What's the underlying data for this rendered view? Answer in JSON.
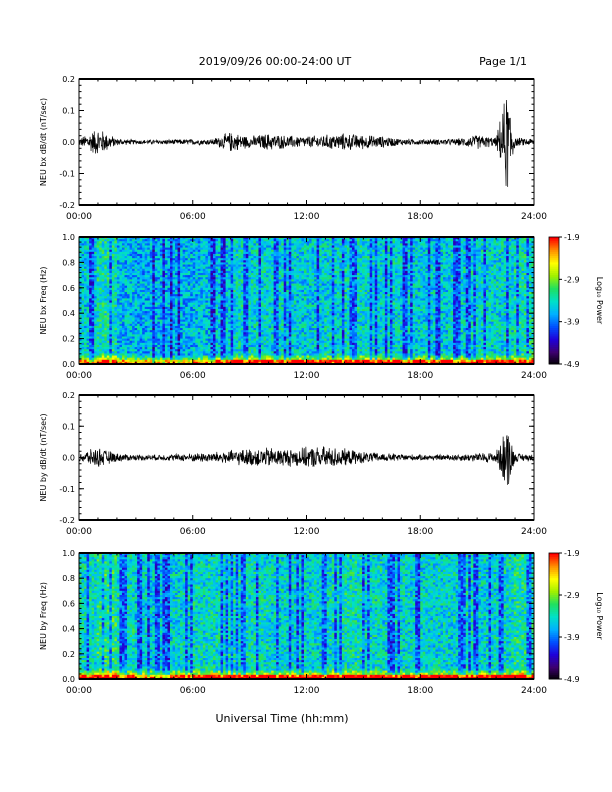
{
  "header": {
    "title": "2019/09/26  00:00-24:00 UT",
    "page": "Page 1/1"
  },
  "footer": {
    "xlabel": "Universal Time (hh:mm)"
  },
  "colorbar": {
    "label": "Log₁₀ Power",
    "ticks": [
      "-1.9",
      "-2.9",
      "-3.9",
      "-4.9"
    ],
    "range": [
      -4.9,
      -1.9
    ],
    "colormap": [
      "#000000",
      "#3d0070",
      "#1f00d9",
      "#0050ff",
      "#00b0ff",
      "#00e0c8",
      "#20e060",
      "#a0f000",
      "#ffff00",
      "#ff9000",
      "#ff0000"
    ]
  },
  "colors": {
    "axis": "#000000",
    "trace": "#000000"
  },
  "chart_data": [
    {
      "type": "line",
      "ylabel": "NEU bx dB/dt (nT/sec)",
      "ylim": [
        -0.2,
        0.2
      ],
      "yticks": [
        "0.2",
        "0.1",
        "0.0",
        "-0.1",
        "-0.2"
      ],
      "xlim": [
        0,
        24
      ],
      "xticks": [
        "00:00",
        "06:00",
        "12:00",
        "18:00",
        "24:00"
      ],
      "x": [
        0,
        1,
        2,
        3,
        4,
        5,
        6,
        7,
        8,
        9,
        10,
        11,
        12,
        13,
        14,
        15,
        16,
        17,
        18,
        19,
        20,
        21,
        22,
        22.6,
        23,
        24
      ],
      "amplitude": [
        0.012,
        0.05,
        0.012,
        0.008,
        0.008,
        0.009,
        0.01,
        0.01,
        0.035,
        0.02,
        0.03,
        0.022,
        0.02,
        0.025,
        0.03,
        0.025,
        0.02,
        0.012,
        0.01,
        0.01,
        0.012,
        0.025,
        0.015,
        0.19,
        0.015,
        0.012
      ]
    },
    {
      "type": "heatmap",
      "ylabel": "NEU bx Freq (Hz)",
      "ylim": [
        0.0,
        1.0
      ],
      "yticks": [
        "1.0",
        "0.8",
        "0.6",
        "0.4",
        "0.2",
        "0.0"
      ],
      "xlim": [
        0,
        24
      ],
      "xticks": [
        "00:00",
        "06:00",
        "12:00",
        "18:00",
        "24:00"
      ],
      "zlim": [
        -4.9,
        -1.9
      ],
      "activity_by_hour": [
        0.45,
        0.6,
        0.35,
        0.3,
        0.3,
        0.3,
        0.35,
        0.4,
        0.55,
        0.5,
        0.5,
        0.45,
        0.45,
        0.5,
        0.55,
        0.5,
        0.5,
        0.45,
        0.45,
        0.45,
        0.5,
        0.5,
        0.5,
        0.6
      ]
    },
    {
      "type": "line",
      "ylabel": "NEU by dB/dt (nT/sec)",
      "ylim": [
        -0.2,
        0.2
      ],
      "yticks": [
        "0.2",
        "0.1",
        "0.0",
        "-0.1",
        "-0.2"
      ],
      "xlim": [
        0,
        24
      ],
      "xticks": [
        "00:00",
        "06:00",
        "12:00",
        "18:00",
        "24:00"
      ],
      "x": [
        0,
        1,
        2,
        3,
        4,
        5,
        6,
        7,
        8,
        9,
        10,
        11,
        12,
        13,
        14,
        15,
        16,
        17,
        18,
        19,
        20,
        21,
        22,
        22.6,
        23,
        24
      ],
      "amplitude": [
        0.015,
        0.035,
        0.015,
        0.01,
        0.01,
        0.012,
        0.015,
        0.018,
        0.025,
        0.03,
        0.035,
        0.03,
        0.035,
        0.04,
        0.03,
        0.02,
        0.015,
        0.012,
        0.01,
        0.01,
        0.012,
        0.015,
        0.02,
        0.12,
        0.015,
        0.012
      ]
    },
    {
      "type": "heatmap",
      "ylabel": "NEU by Freq (Hz)",
      "ylim": [
        0.0,
        1.0
      ],
      "yticks": [
        "1.0",
        "0.8",
        "0.6",
        "0.4",
        "0.2",
        "0.0"
      ],
      "xlim": [
        0,
        24
      ],
      "xticks": [
        "00:00",
        "06:00",
        "12:00",
        "18:00",
        "24:00"
      ],
      "zlim": [
        -4.9,
        -1.9
      ],
      "activity_by_hour": [
        0.55,
        0.75,
        0.55,
        0.45,
        0.45,
        0.5,
        0.55,
        0.55,
        0.6,
        0.55,
        0.5,
        0.5,
        0.5,
        0.55,
        0.6,
        0.55,
        0.5,
        0.5,
        0.5,
        0.5,
        0.55,
        0.5,
        0.55,
        0.65
      ]
    }
  ]
}
